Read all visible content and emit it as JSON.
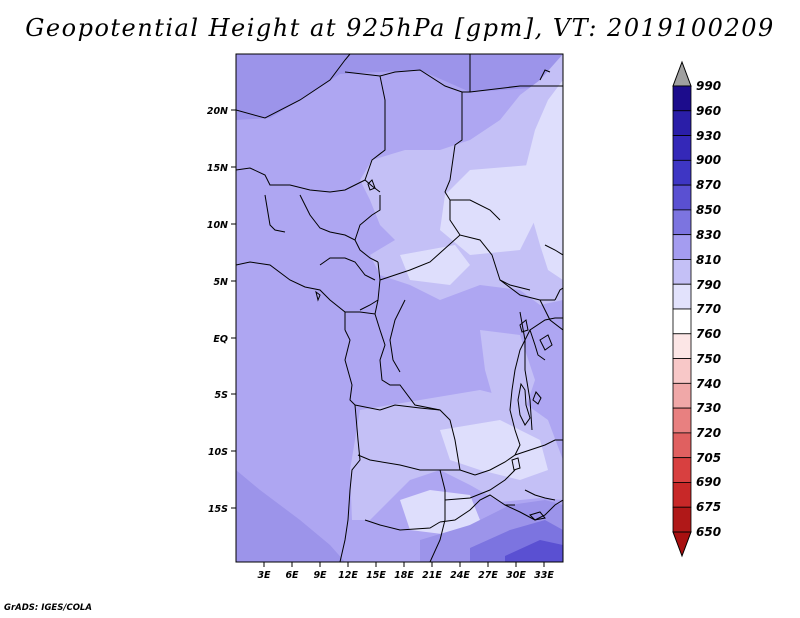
{
  "title": "Geopotential Height at 925hPa [gpm], VT: 2019100209",
  "credit": "GrADS: IGES/COLA",
  "map": {
    "lon_labels": [
      "3E",
      "6E",
      "9E",
      "12E",
      "15E",
      "18E",
      "21E",
      "24E",
      "27E",
      "30E",
      "33E"
    ],
    "lat_labels": [
      "20N",
      "15N",
      "10N",
      "5N",
      "EQ",
      "5S",
      "10S",
      "15S"
    ]
  },
  "colorbar": {
    "levels": [
      "990",
      "960",
      "930",
      "900",
      "870",
      "850",
      "830",
      "810",
      "790",
      "770",
      "760",
      "750",
      "740",
      "730",
      "720",
      "705",
      "690",
      "675",
      "650"
    ],
    "colors": [
      "#a0a0a0",
      "#1c0c8c",
      "#2a1ea8",
      "#3428b8",
      "#3e36c4",
      "#5a50d2",
      "#7c74e0",
      "#a49cf0",
      "#c4c0f6",
      "#e2e2fc",
      "#ffffff",
      "#fce6e6",
      "#f8c8c8",
      "#f0a8a8",
      "#e88080",
      "#e06060",
      "#d84040",
      "#c82828",
      "#b01818",
      "#a81010"
    ]
  }
}
